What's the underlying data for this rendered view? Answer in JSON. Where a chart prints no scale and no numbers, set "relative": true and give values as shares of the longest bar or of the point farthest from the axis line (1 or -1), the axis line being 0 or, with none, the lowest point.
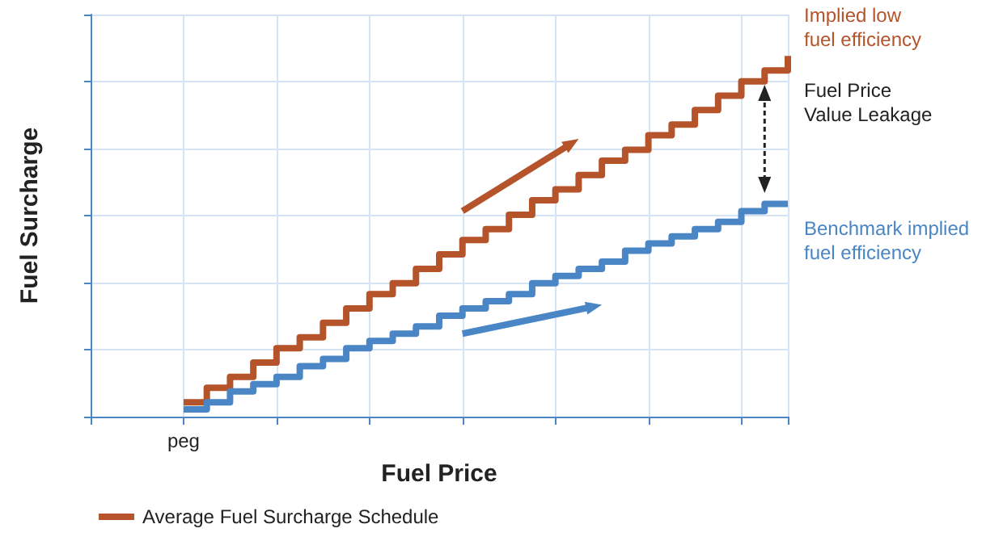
{
  "chart_data": {
    "type": "step",
    "relative": true,
    "xlabel": "Fuel Price",
    "ylabel": "Fuel Surcharge",
    "categories": [
      null,
      null,
      null,
      null,
      null,
      null,
      null,
      null,
      null,
      null,
      null,
      null,
      null,
      null,
      null,
      null,
      null,
      null,
      null,
      null,
      null,
      null,
      null,
      null,
      null,
      null,
      null,
      null,
      null,
      null,
      null
    ],
    "grid": true,
    "legend": "bottom left",
    "marker": "none",
    "line_style": "solid",
    "series": [
      {
        "name": "Average Fuel Surcharge Schedule",
        "color": "#b5532a",
        "values": [
          null,
          null,
          null,
          null,
          0.04,
          0.08,
          0.11,
          0.15,
          0.19,
          0.22,
          0.26,
          0.3,
          0.34,
          0.37,
          0.41,
          0.45,
          0.49,
          0.52,
          0.56,
          0.6,
          0.63,
          0.67,
          0.71,
          0.74,
          0.78,
          0.81,
          0.85,
          0.89,
          0.93,
          0.96,
          1.0
        ]
      },
      {
        "color": "#4a86c5",
        "values": [
          null,
          null,
          null,
          null,
          0.02,
          0.04,
          0.07,
          0.09,
          0.11,
          0.14,
          0.16,
          0.19,
          0.21,
          0.23,
          0.25,
          0.28,
          0.3,
          0.32,
          0.34,
          0.37,
          0.39,
          0.41,
          0.43,
          0.46,
          0.48,
          0.5,
          0.52,
          0.54,
          0.57,
          0.59,
          0.59
        ]
      }
    ],
    "annotations": [
      "peg",
      "Implied low fuel efficiency",
      "Fuel Price Value Leakage",
      "Benchmark implied fuel efficiency"
    ]
  }
}
